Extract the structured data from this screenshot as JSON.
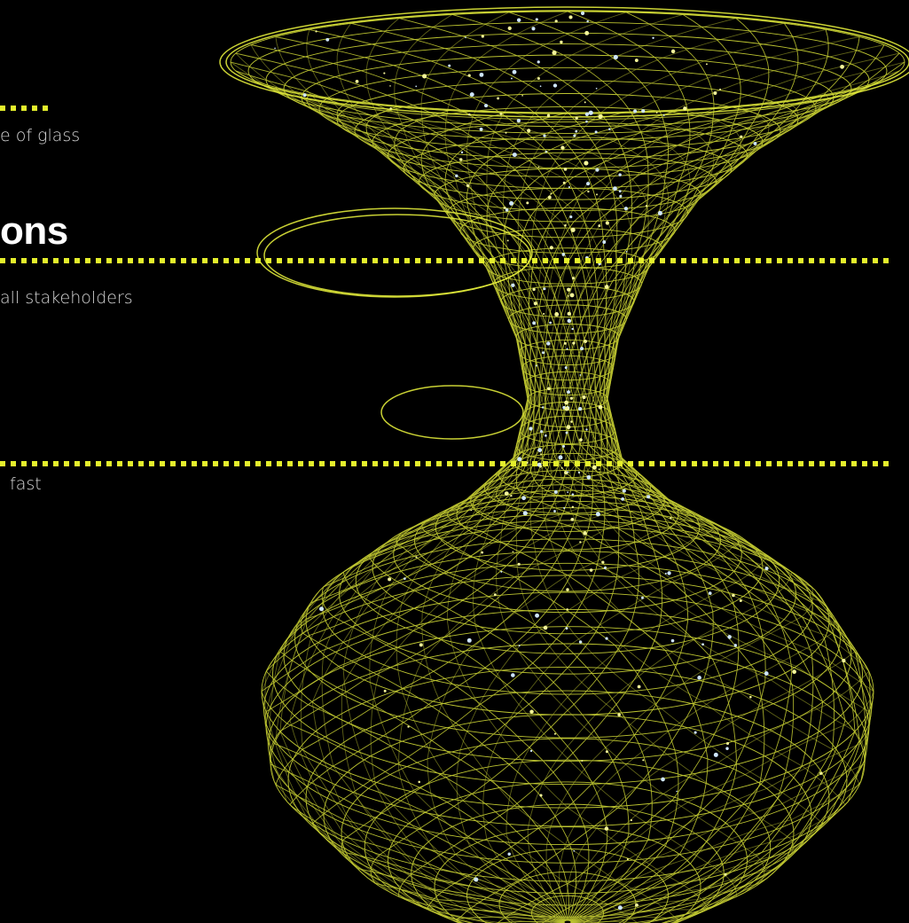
{
  "sections": [
    {
      "text": "e of glass"
    },
    {
      "heading": "ons",
      "text": "all stakeholders"
    },
    {
      "text": "fast"
    }
  ]
}
